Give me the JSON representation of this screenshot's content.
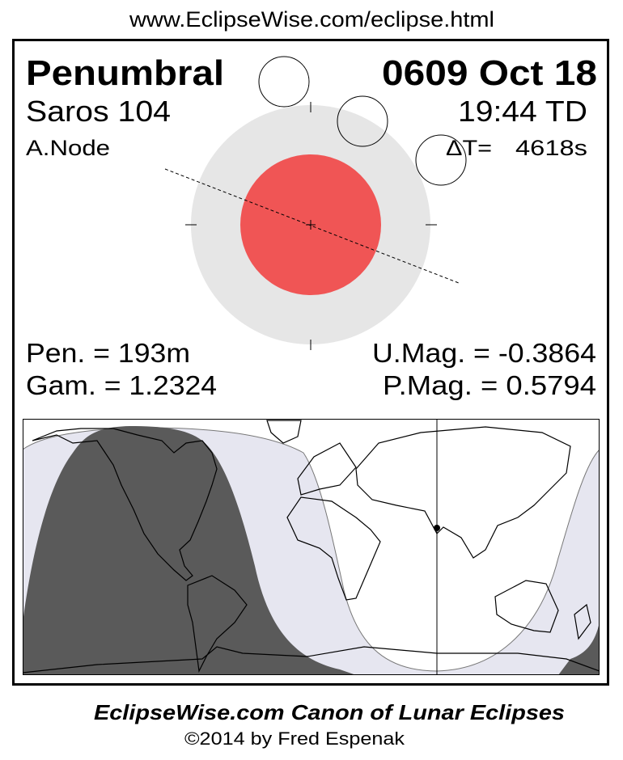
{
  "header": {
    "url": "www.EclipseWise.com/eclipse.html"
  },
  "eclipse": {
    "type": "Penumbral",
    "date": "0609 Oct 18",
    "saros": "Saros 104",
    "time": "19:44 TD",
    "node": "A.Node",
    "delta_t_label": "ΔT=",
    "delta_t_value": "4618s",
    "pen_duration": "Pen. = 193m",
    "gamma": "Gam. = 1.2324",
    "umbral_mag": "U.Mag. = -0.3864",
    "penumbral_mag": "P.Mag. = 0.5794"
  },
  "colors": {
    "umbra": "#f05555",
    "penumbra": "#e6e6e6",
    "map_penumbral_visibility": "#e6e6f0",
    "map_no_visibility": "#5a5a5a",
    "map_full_visibility": "#ffffff"
  },
  "footer": {
    "title": "EclipseWise.com Canon of Lunar Eclipses",
    "copyright": "©2014 by Fred Espenak"
  }
}
